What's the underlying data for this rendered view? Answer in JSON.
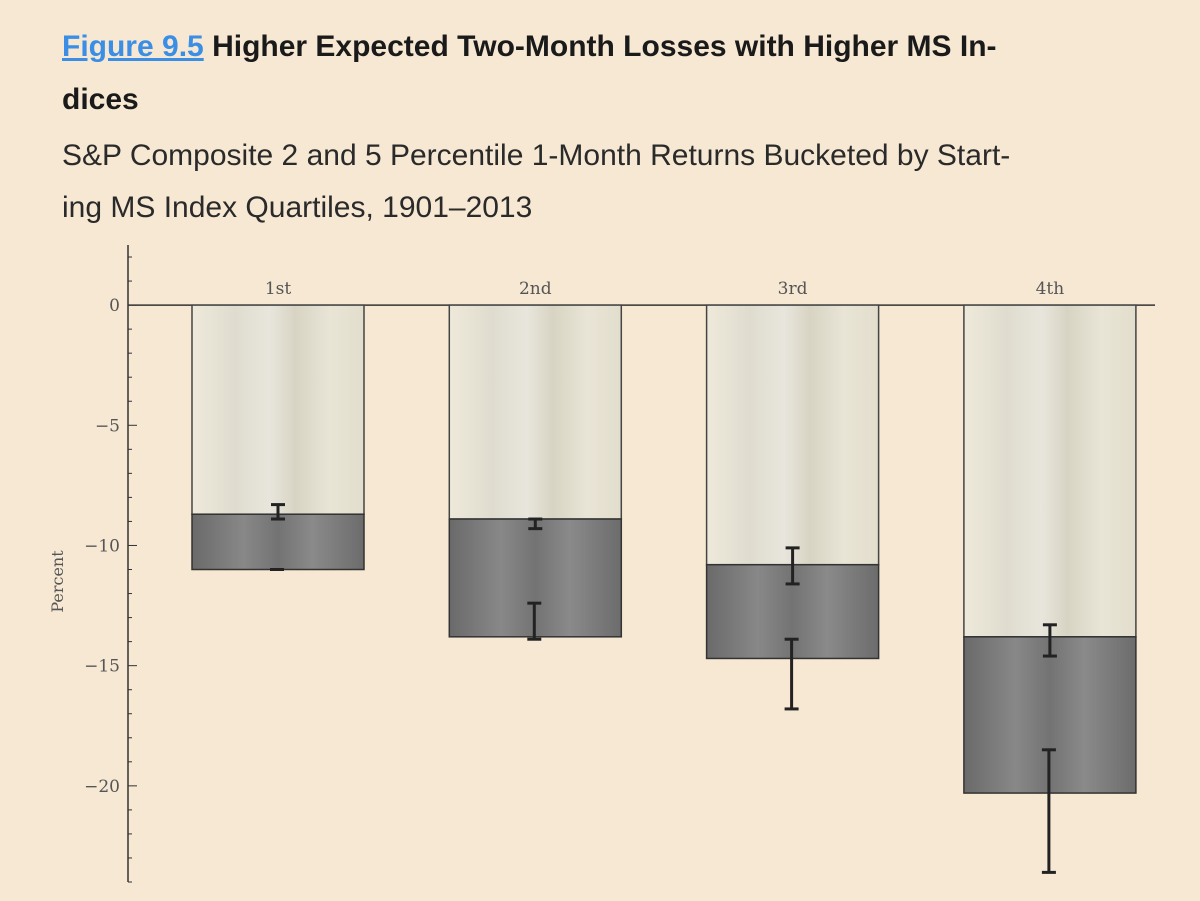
{
  "header": {
    "figure_link": "Figure 9.5",
    "title_line1": "Higher Expected Two-Month Losses with Higher MS In-",
    "title_line2": "dices",
    "subtitle_line1": "S&P Composite 2 and 5 Percentile 1-Month Returns Bucketed by Start-",
    "subtitle_line2": "ing MS Index Quartiles, 1901–2013"
  },
  "chart_data": {
    "type": "bar",
    "categories": [
      "1st",
      "2nd",
      "3rd",
      "4th"
    ],
    "series": [
      {
        "name": "5 Percentile",
        "values": [
          -8.7,
          -8.9,
          -10.8,
          -13.8
        ],
        "error_low": [
          -8.9,
          -9.3,
          -11.6,
          -14.6
        ],
        "error_high": [
          -8.3,
          -8.9,
          -10.1,
          -13.3
        ]
      },
      {
        "name": "2 Percentile",
        "values": [
          -11.0,
          -13.8,
          -14.7,
          -20.3
        ],
        "error_low": [
          -11.0,
          -13.9,
          -16.8,
          -23.6
        ],
        "error_high": [
          -11.0,
          -12.4,
          -13.9,
          -18.5
        ]
      }
    ],
    "title": "Higher Expected Two-Month Losses with Higher MS Indices",
    "xlabel": "",
    "ylabel": "Percent",
    "ylim": [
      -24,
      2.5
    ],
    "yticks": [
      0,
      -5,
      -10,
      -15,
      -20
    ],
    "ytick_labels": [
      "0",
      "−5",
      "−10",
      "−15",
      "−20"
    ],
    "colors": {
      "light_bar": "#e6e3d6",
      "dark_bar": "#777777",
      "error": "#222222",
      "axis": "#333333"
    }
  }
}
